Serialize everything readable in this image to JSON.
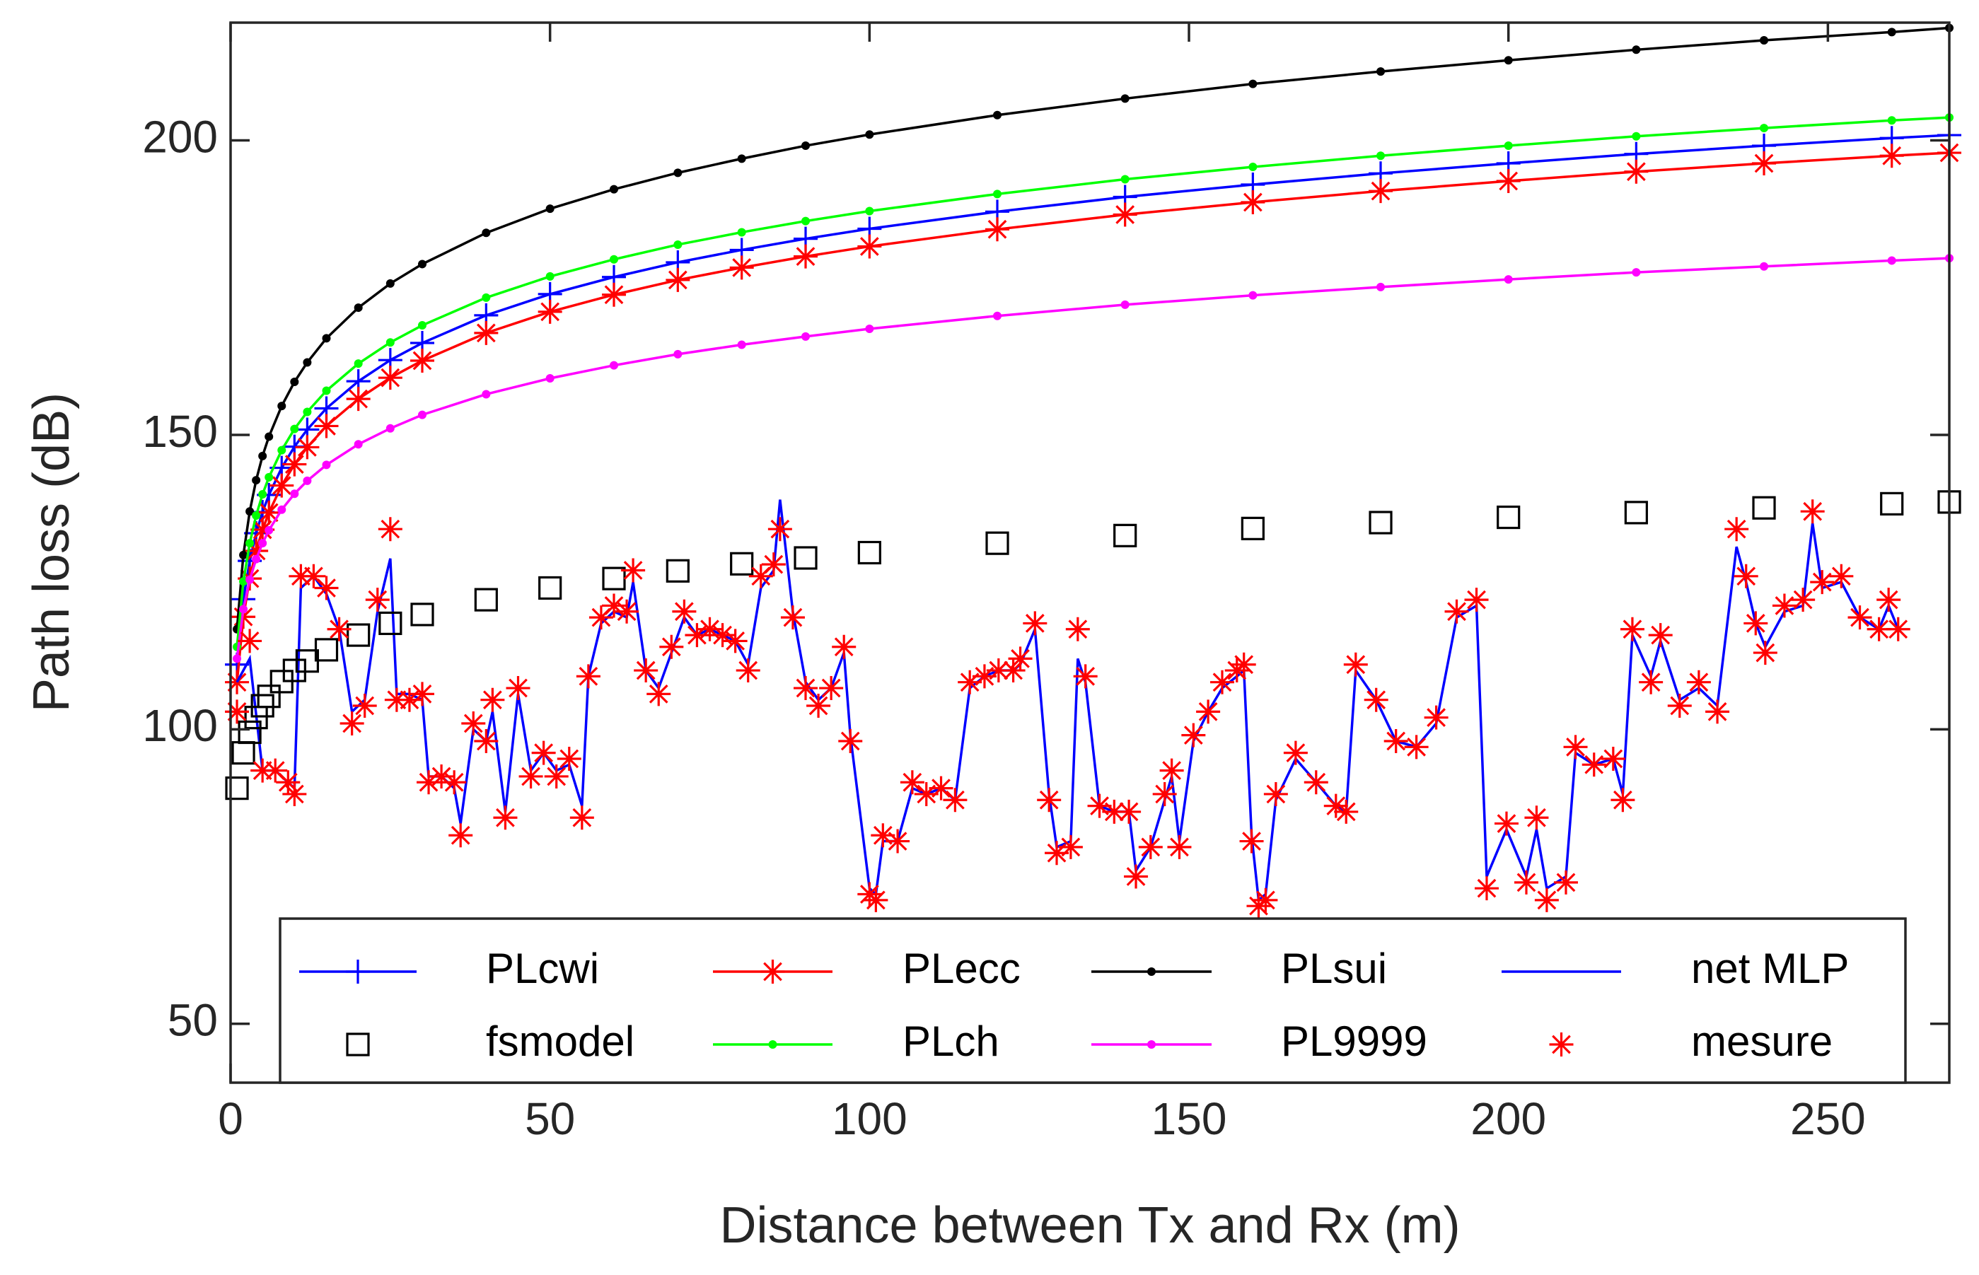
{
  "chart_data": {
    "type": "line",
    "xlabel": "Distance between Tx and Rx (m)",
    "ylabel": "Path loss (dB)",
    "xlim": [
      0,
      269
    ],
    "ylim": [
      40,
      220
    ],
    "xticks": [
      0,
      50,
      100,
      150,
      200,
      250
    ],
    "yticks": [
      50,
      100,
      150,
      200
    ],
    "legend": "bottom",
    "series": [
      {
        "name": "PLcwi",
        "color": "#0000ff",
        "marker": "plus",
        "line": true,
        "x": [
          1,
          2,
          3,
          4,
          5,
          6,
          8,
          10,
          12,
          15,
          20,
          25,
          30,
          40,
          50,
          60,
          70,
          80,
          90,
          100,
          120,
          140,
          160,
          180,
          200,
          220,
          240,
          260,
          269
        ],
        "values": [
          111,
          122.1,
          128.6,
          133.3,
          136.9,
          139.8,
          144.4,
          148,
          150.9,
          154.5,
          159.1,
          162.7,
          165.6,
          170.3,
          173.9,
          176.8,
          179.3,
          181.4,
          183.3,
          185,
          187.9,
          190.4,
          192.5,
          194.4,
          196.1,
          197.7,
          199.1,
          200.4,
          200.9
        ]
      },
      {
        "name": "PLecc",
        "color": "#ff0000",
        "marker": "star",
        "line": true,
        "x": [
          1,
          2,
          3,
          4,
          5,
          6,
          8,
          10,
          12,
          15,
          20,
          25,
          30,
          40,
          50,
          60,
          70,
          80,
          90,
          100,
          120,
          140,
          160,
          180,
          200,
          220,
          240,
          260,
          269
        ],
        "values": [
          108,
          119.1,
          125.6,
          130.3,
          133.9,
          136.8,
          141.4,
          145,
          147.9,
          151.5,
          156.1,
          159.7,
          162.6,
          167.3,
          170.9,
          173.8,
          176.3,
          178.4,
          180.3,
          182,
          184.9,
          187.4,
          189.5,
          191.4,
          193.1,
          194.7,
          196.1,
          197.4,
          197.9
        ]
      },
      {
        "name": "PLsui",
        "color": "#000000",
        "marker": "dot",
        "line": true,
        "x": [
          1,
          2,
          3,
          4,
          5,
          6,
          8,
          10,
          12,
          15,
          20,
          25,
          30,
          40,
          50,
          60,
          70,
          80,
          90,
          100,
          120,
          140,
          160,
          180,
          200,
          220,
          240,
          260,
          269
        ],
        "values": [
          117,
          129.6,
          137,
          142.3,
          146.4,
          149.7,
          154.9,
          159,
          162.3,
          166.4,
          171.6,
          175.7,
          179,
          184.3,
          188.4,
          191.7,
          194.5,
          196.9,
          199.1,
          201,
          204.3,
          207.1,
          209.6,
          211.7,
          213.6,
          215.4,
          217,
          218.4,
          219.1
        ]
      },
      {
        "name": "net MLP",
        "color": "#0000ff",
        "marker": "none",
        "line": true,
        "x": [
          1,
          3,
          5,
          7,
          9,
          10,
          11,
          13,
          15,
          17,
          19,
          21,
          23,
          25,
          26,
          28,
          30,
          31,
          33,
          35,
          36,
          38,
          40,
          41,
          43,
          45,
          47,
          49,
          51,
          53,
          55,
          56,
          58,
          60,
          62,
          63,
          65,
          67,
          69,
          71,
          73,
          75,
          77,
          79,
          81,
          83,
          85,
          86,
          88,
          90,
          92,
          94,
          96,
          97,
          100,
          101,
          102.1,
          104.4,
          106.7,
          108.9,
          111.2,
          113.4,
          115.7,
          118,
          120.2,
          122.5,
          123.6,
          125.9,
          128.1,
          129.3,
          131.5,
          132.6,
          133.8,
          136,
          138.3,
          140.6,
          141.7,
          144,
          146.2,
          147.3,
          148.5,
          150.7,
          153,
          155.2,
          157.5,
          158.6,
          159.8,
          160.9,
          162,
          163.6,
          166.7,
          169.9,
          173,
          174.6,
          176.1,
          179.3,
          182.4,
          185.6,
          188.7,
          191.9,
          195,
          196.6,
          199.7,
          202.8,
          204.4,
          206,
          209,
          210.5,
          213.4,
          216.4,
          217.9,
          219.4,
          222.3,
          223.8,
          226.8,
          229.8,
          232.7,
          235.7,
          237.2,
          238.7,
          240.2,
          243.2,
          246.1,
          247.6,
          249.1,
          252.1,
          255,
          258,
          259.5,
          261
        ],
        "values": [
          108,
          112,
          93,
          93,
          91,
          90,
          124,
          126,
          123,
          117,
          103,
          105,
          120,
          129,
          106,
          106,
          105,
          92,
          92,
          90,
          84,
          100,
          98,
          103,
          86,
          106,
          93,
          96,
          93,
          94,
          87,
          109,
          118,
          120,
          119,
          125,
          110,
          107,
          113,
          119,
          116,
          117,
          116,
          115,
          111,
          124,
          127,
          139,
          120,
          108,
          105,
          107,
          113,
          99,
          73,
          72,
          81,
          81,
          90,
          89,
          90,
          88,
          107,
          109,
          110,
          110,
          111,
          117,
          89,
          80,
          81,
          112,
          108,
          87,
          86,
          86,
          76,
          80,
          88,
          92,
          81,
          98,
          103,
          107,
          109,
          110,
          82,
          71,
          72,
          88,
          95,
          91,
          87,
          86,
          110,
          105,
          98,
          97,
          101,
          119,
          121,
          75,
          83,
          75,
          83,
          73,
          75,
          96,
          94,
          95,
          89,
          116,
          109,
          115,
          105,
          107,
          104,
          131,
          125,
          118,
          114,
          120,
          121,
          135,
          124,
          125,
          119,
          117,
          121,
          117
        ]
      },
      {
        "name": "fsmodel",
        "color": "#000000",
        "marker": "square",
        "line": false,
        "x": [
          1,
          2,
          3,
          4,
          5,
          6,
          8,
          10,
          12,
          15,
          20,
          25,
          30,
          40,
          50,
          60,
          70,
          80,
          90,
          100,
          120,
          140,
          160,
          180,
          200,
          220,
          240,
          260,
          269
        ],
        "values": [
          90,
          96,
          99.5,
          102,
          104,
          105.6,
          108.1,
          110,
          111.6,
          113.5,
          116,
          118,
          119.5,
          122,
          124,
          125.6,
          126.9,
          128.1,
          129.1,
          130,
          131.6,
          132.9,
          134.1,
          135.1,
          136,
          136.8,
          137.6,
          138.3,
          138.6
        ]
      },
      {
        "name": "PLch",
        "color": "#00ff00",
        "marker": "dot",
        "line": true,
        "x": [
          1,
          2,
          3,
          4,
          5,
          6,
          8,
          10,
          12,
          15,
          20,
          25,
          30,
          40,
          50,
          60,
          70,
          80,
          90,
          100,
          120,
          140,
          160,
          180,
          200,
          220,
          240,
          260,
          269
        ],
        "values": [
          114,
          125.1,
          131.6,
          136.3,
          139.9,
          142.8,
          147.4,
          151,
          153.9,
          157.5,
          162.1,
          165.7,
          168.6,
          173.3,
          176.9,
          179.8,
          182.3,
          184.4,
          186.3,
          188,
          190.9,
          193.4,
          195.5,
          197.4,
          199.1,
          200.7,
          202.1,
          203.4,
          203.9
        ]
      },
      {
        "name": "PL9999",
        "color": "#ff00ff",
        "marker": "dot",
        "line": true,
        "x": [
          1,
          2,
          3,
          4,
          5,
          6,
          8,
          10,
          12,
          15,
          20,
          25,
          30,
          40,
          50,
          60,
          70,
          80,
          90,
          100,
          120,
          140,
          160,
          180,
          200,
          220,
          240,
          260,
          269
        ],
        "values": [
          112,
          120.4,
          125.4,
          128.9,
          131.6,
          133.8,
          137.3,
          140,
          142.2,
          144.9,
          148.4,
          151.1,
          153.4,
          156.9,
          159.6,
          161.8,
          163.7,
          165.3,
          166.7,
          168,
          170.2,
          172.1,
          173.7,
          175.1,
          176.4,
          177.6,
          178.6,
          179.6,
          180
        ]
      },
      {
        "name": "mesure",
        "color": "#ff0000",
        "marker": "star",
        "line": false,
        "x": [
          1,
          3,
          5,
          7,
          9,
          10,
          11,
          13,
          15,
          17,
          19,
          21,
          23,
          25,
          26,
          28,
          30,
          31,
          33,
          35,
          36,
          38,
          40,
          41,
          43,
          45,
          47,
          49,
          51,
          53,
          55,
          56,
          58,
          60,
          62,
          63,
          65,
          67,
          69,
          71,
          73,
          75,
          77,
          79,
          81,
          83,
          85,
          86,
          88,
          90,
          92,
          94,
          96,
          97,
          100,
          101,
          102.1,
          104.4,
          106.7,
          108.9,
          111.2,
          113.4,
          115.7,
          118,
          120.2,
          122.5,
          123.6,
          125.9,
          128.1,
          129.3,
          131.5,
          132.6,
          133.8,
          136,
          138.3,
          140.6,
          141.7,
          144,
          146.2,
          147.3,
          148.5,
          150.7,
          153,
          155.2,
          157.5,
          158.6,
          159.8,
          160.9,
          162,
          163.6,
          166.7,
          169.9,
          173,
          174.6,
          176.1,
          179.3,
          182.4,
          185.6,
          188.7,
          191.9,
          195,
          196.6,
          199.7,
          202.8,
          204.4,
          206,
          209,
          210.5,
          213.4,
          216.4,
          217.9,
          219.4,
          222.3,
          223.8,
          226.8,
          229.8,
          232.7,
          235.7,
          237.2,
          238.7,
          240.2,
          243.2,
          246.1,
          247.6,
          249.1,
          252.1,
          255,
          258,
          259.5,
          261
        ],
        "values": [
          103,
          115,
          93,
          93,
          91,
          89,
          126,
          126,
          124,
          117,
          101,
          104,
          122,
          134,
          105,
          105,
          106,
          91,
          92,
          91,
          82,
          101,
          98,
          105,
          85,
          107,
          92,
          96,
          92,
          95,
          85,
          109,
          119,
          121,
          120,
          127,
          110,
          106,
          114,
          120,
          116,
          117,
          116,
          115,
          110,
          126,
          128,
          134,
          119,
          107,
          104,
          107,
          114,
          98,
          72,
          71,
          82,
          81,
          91,
          89,
          90,
          88,
          108,
          109,
          110,
          110,
          112,
          118,
          88,
          79,
          80,
          117,
          109,
          87,
          86,
          86,
          75,
          80,
          89,
          93,
          80,
          99,
          103,
          108,
          110,
          111,
          81,
          70,
          71,
          89,
          96,
          91,
          87,
          86,
          111,
          105,
          98,
          97,
          102,
          120,
          122,
          73,
          84,
          74,
          85,
          71,
          74,
          97,
          94,
          95,
          88,
          117,
          108,
          116,
          104,
          108,
          103,
          134,
          126,
          118,
          113,
          121,
          122,
          137,
          125,
          126,
          119,
          117,
          122,
          117
        ]
      }
    ]
  }
}
